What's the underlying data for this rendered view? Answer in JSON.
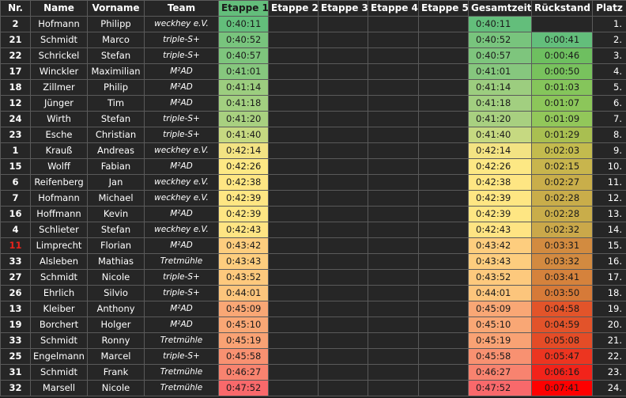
{
  "headers": {
    "nr": "Nr.",
    "name": "Name",
    "vorname": "Vorname",
    "team": "Team",
    "etappe1": "Etappe 1",
    "etappe2": "Etappe 2",
    "etappe3": "Etappe 3",
    "etappe4": "Etappe 4",
    "etappe5": "Etappe 5",
    "gesamtzeit": "Gesamtzeit",
    "rueckstand": "Rückstand",
    "platz": "Platz"
  },
  "colors": {
    "background": "#1f1f1f",
    "grid": "#5a5a5a",
    "text": "#ffffff",
    "highlight_nr": "#e8231c"
  },
  "rows": [
    {
      "nr": "2",
      "name": "Hofmann",
      "vorname": "Philipp",
      "team": "weckhey e.V.",
      "etappe1": "0:40:11",
      "gesamtzeit": "0:40:11",
      "rueckstand": "",
      "platz": "1.",
      "e1_color": "#63be7b",
      "ges_color": "#63be7b",
      "rs_color": ""
    },
    {
      "nr": "21",
      "name": "Schmidt",
      "vorname": "Marco",
      "team": "triple-S+",
      "etappe1": "0:40:52",
      "gesamtzeit": "0:40:52",
      "rueckstand": "0:00:41",
      "platz": "2.",
      "e1_color": "#78c47d",
      "ges_color": "#78c47d",
      "rs_color": "#63be7b"
    },
    {
      "nr": "22",
      "name": "Schrickel",
      "vorname": "Stefan",
      "team": "triple-S+",
      "etappe1": "0:40:57",
      "gesamtzeit": "0:40:57",
      "rueckstand": "0:00:46",
      "platz": "3.",
      "e1_color": "#7ec57d",
      "ges_color": "#7ec57d",
      "rs_color": "#6ebf60"
    },
    {
      "nr": "17",
      "name": "Winckler",
      "vorname": "Maximilian",
      "team": "M²AD",
      "etappe1": "0:41:01",
      "gesamtzeit": "0:41:01",
      "rueckstand": "0:00:50",
      "platz": "4.",
      "e1_color": "#86c77e",
      "ges_color": "#86c77e",
      "rs_color": "#78c25d"
    },
    {
      "nr": "18",
      "name": "Zillmer",
      "vorname": "Philip",
      "team": "M²AD",
      "etappe1": "0:41:14",
      "gesamtzeit": "0:41:14",
      "rueckstand": "0:01:03",
      "platz": "5.",
      "e1_color": "#9ccd7f",
      "ges_color": "#9ccd7f",
      "rs_color": "#85c55b"
    },
    {
      "nr": "12",
      "name": "Jünger",
      "vorname": "Tim",
      "team": "M²AD",
      "etappe1": "0:41:18",
      "gesamtzeit": "0:41:18",
      "rueckstand": "0:01:07",
      "platz": "6.",
      "e1_color": "#a2cf80",
      "ges_color": "#a2cf80",
      "rs_color": "#8cc65a"
    },
    {
      "nr": "24",
      "name": "Wirth",
      "vorname": "Stefan",
      "team": "triple-S+",
      "etappe1": "0:41:20",
      "gesamtzeit": "0:41:20",
      "rueckstand": "0:01:09",
      "platz": "7.",
      "e1_color": "#a8d080",
      "ges_color": "#a8d080",
      "rs_color": "#92c75a"
    },
    {
      "nr": "23",
      "name": "Esche",
      "vorname": "Christian",
      "team": "triple-S+",
      "etappe1": "0:41:40",
      "gesamtzeit": "0:41:40",
      "rueckstand": "0:01:29",
      "platz": "8.",
      "e1_color": "#c6d981",
      "ges_color": "#c6d981",
      "rs_color": "#a9bf51"
    },
    {
      "nr": "1",
      "name": "Krauß",
      "vorname": "Andreas",
      "team": "weckhey e.V.",
      "etappe1": "0:42:14",
      "gesamtzeit": "0:42:14",
      "rueckstand": "0:02:03",
      "platz": "9.",
      "e1_color": "#f3e383",
      "ges_color": "#f3e383",
      "rs_color": "#c3bb4e"
    },
    {
      "nr": "15",
      "name": "Wolff",
      "vorname": "Fabian",
      "team": "M²AD",
      "etappe1": "0:42:26",
      "gesamtzeit": "0:42:26",
      "rueckstand": "0:02:15",
      "platz": "10.",
      "e1_color": "#fde884",
      "ges_color": "#fde884",
      "rs_color": "#c8b54d"
    },
    {
      "nr": "6",
      "name": "Reifenberg",
      "vorname": "Jan",
      "team": "weckhey e.V.",
      "etappe1": "0:42:38",
      "gesamtzeit": "0:42:38",
      "rueckstand": "0:02:27",
      "platz": "11.",
      "e1_color": "#fee683",
      "ges_color": "#fee683",
      "rs_color": "#c9ae4a"
    },
    {
      "nr": "7",
      "name": "Hofmann",
      "vorname": "Michael",
      "team": "weckhey e.V.",
      "etappe1": "0:42:39",
      "gesamtzeit": "0:42:39",
      "rueckstand": "0:02:28",
      "platz": "12.",
      "e1_color": "#fee683",
      "ges_color": "#fee683",
      "rs_color": "#c9ad4a"
    },
    {
      "nr": "16",
      "name": "Hoffmann",
      "vorname": "Kevin",
      "team": "M²AD",
      "etappe1": "0:42:39",
      "gesamtzeit": "0:42:39",
      "rueckstand": "0:02:28",
      "platz": "13.",
      "e1_color": "#fee683",
      "ges_color": "#fee683",
      "rs_color": "#c9ad4a"
    },
    {
      "nr": "4",
      "name": "Schlieter",
      "vorname": "Stefan",
      "team": "weckhey e.V.",
      "etappe1": "0:42:43",
      "gesamtzeit": "0:42:43",
      "rueckstand": "0:02:32",
      "platz": "14.",
      "e1_color": "#fee483",
      "ges_color": "#fee483",
      "rs_color": "#caa84a"
    },
    {
      "nr": "11",
      "name": "Limprecht",
      "vorname": "Florian",
      "team": "M²AD",
      "etappe1": "0:43:42",
      "gesamtzeit": "0:43:42",
      "rueckstand": "0:03:31",
      "platz": "15.",
      "e1_color": "#fdcd7e",
      "ges_color": "#fdcd7e",
      "rs_color": "#d28b40",
      "nr_red": true
    },
    {
      "nr": "33",
      "name": "Alsleben",
      "vorname": "Mathias",
      "team": "Tretmühle",
      "etappe1": "0:43:43",
      "gesamtzeit": "0:43:43",
      "rueckstand": "0:03:32",
      "platz": "16.",
      "e1_color": "#fdcd7e",
      "ges_color": "#fdcd7e",
      "rs_color": "#d28a40"
    },
    {
      "nr": "27",
      "name": "Schmidt",
      "vorname": "Nicole",
      "team": "triple-S+",
      "etappe1": "0:43:52",
      "gesamtzeit": "0:43:52",
      "rueckstand": "0:03:41",
      "platz": "17.",
      "e1_color": "#fdc97d",
      "ges_color": "#fdc97d",
      "rs_color": "#d5823c"
    },
    {
      "nr": "26",
      "name": "Ehrlich",
      "vorname": "Silvio",
      "team": "triple-S+",
      "etappe1": "0:44:01",
      "gesamtzeit": "0:44:01",
      "rueckstand": "0:03:50",
      "platz": "18.",
      "e1_color": "#fcc57c",
      "ges_color": "#fcc57c",
      "rs_color": "#d67a38"
    },
    {
      "nr": "13",
      "name": "Kleiber",
      "vorname": "Anthony",
      "team": "M²AD",
      "etappe1": "0:45:09",
      "gesamtzeit": "0:45:09",
      "rueckstand": "0:04:58",
      "platz": "19.",
      "e1_color": "#f9a775",
      "ges_color": "#f9a775",
      "rs_color": "#e2542a"
    },
    {
      "nr": "19",
      "name": "Borchert",
      "vorname": "Holger",
      "team": "M²AD",
      "etappe1": "0:45:10",
      "gesamtzeit": "0:45:10",
      "rueckstand": "0:04:59",
      "platz": "20.",
      "e1_color": "#f9a775",
      "ges_color": "#f9a775",
      "rs_color": "#e2532a"
    },
    {
      "nr": "33",
      "name": "Schmidt",
      "vorname": "Ronny",
      "team": "Tretmühle",
      "etappe1": "0:45:19",
      "gesamtzeit": "0:45:19",
      "rueckstand": "0:05:08",
      "platz": "21.",
      "e1_color": "#f9a274",
      "ges_color": "#f9a274",
      "rs_color": "#e44c27"
    },
    {
      "nr": "25",
      "name": "Engelmann",
      "vorname": "Marcel",
      "team": "triple-S+",
      "etappe1": "0:45:58",
      "gesamtzeit": "0:45:58",
      "rueckstand": "0:05:47",
      "platz": "22.",
      "e1_color": "#f89171",
      "ges_color": "#f89171",
      "rs_color": "#ec3520"
    },
    {
      "nr": "31",
      "name": "Schmidt",
      "vorname": "Frank",
      "team": "Tretmühle",
      "etappe1": "0:46:27",
      "gesamtzeit": "0:46:27",
      "rueckstand": "0:06:16",
      "platz": "23.",
      "e1_color": "#f8836f",
      "ges_color": "#f8836f",
      "rs_color": "#f2231a"
    },
    {
      "nr": "32",
      "name": "Marsell",
      "vorname": "Nicole",
      "team": "Tretmühle",
      "etappe1": "0:47:52",
      "gesamtzeit": "0:47:52",
      "rueckstand": "0:07:41",
      "platz": "24.",
      "e1_color": "#f8696b",
      "ges_color": "#f8696b",
      "rs_color": "#ff0000"
    }
  ]
}
